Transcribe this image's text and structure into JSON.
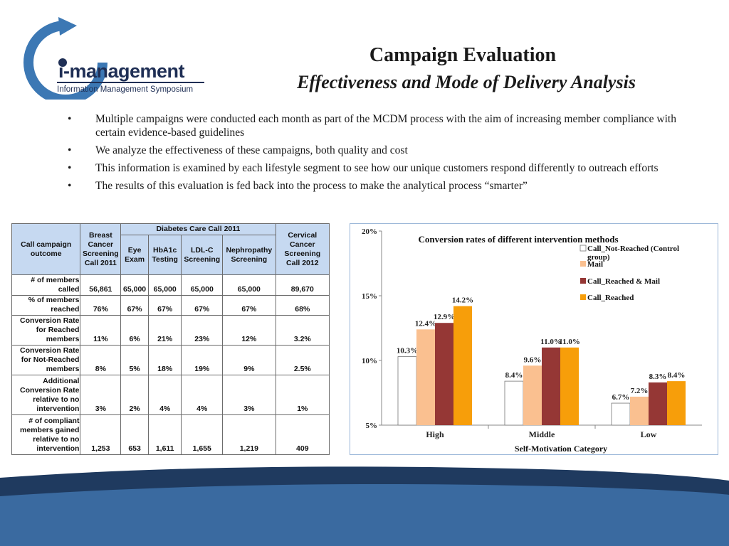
{
  "logo": {
    "word": "i-management",
    "subtitle": "Information Management Symposium"
  },
  "title": {
    "line1": "Campaign Evaluation",
    "line2": "Effectiveness and Mode of Delivery Analysis"
  },
  "bullets": [
    "Multiple campaigns were conducted each month as part of the MCDM process with the aim of increasing member compliance with certain evidence-based guidelines",
    "We analyze the effectiveness of these campaigns, both quality and cost",
    "This information is examined by each lifestyle segment to see how our unique customers respond differently to outreach efforts",
    "The results of this evaluation is fed back into the process to make the analytical process “smarter”"
  ],
  "table": {
    "h_outcome": "Call campaign outcome",
    "h_breast": "Breast Cancer Screening Call 2011",
    "h_diabetes": "Diabetes Care Call 2011",
    "h_eye": "Eye Exam",
    "h_hba1c": "HbA1c Testing",
    "h_ldlc": "LDL-C Screening",
    "h_nephro": "Nephropathy Screening",
    "h_cervical": "Cervical Cancer Screening Call 2012",
    "rows": [
      {
        "label": "# of members called",
        "vals": [
          "56,861",
          "65,000",
          "65,000",
          "65,000",
          "65,000",
          "89,670"
        ]
      },
      {
        "label": "% of members reached",
        "vals": [
          "76%",
          "67%",
          "67%",
          "67%",
          "67%",
          "68%"
        ]
      },
      {
        "label": "Conversion Rate for Reached members",
        "vals": [
          "11%",
          "6%",
          "21%",
          "23%",
          "12%",
          "3.2%"
        ]
      },
      {
        "label": "Conversion Rate for Not-Reached members",
        "vals": [
          "8%",
          "5%",
          "18%",
          "19%",
          "9%",
          "2.5%"
        ]
      },
      {
        "label": "Additional Conversion Rate relative to no intervention",
        "vals": [
          "3%",
          "2%",
          "4%",
          "4%",
          "3%",
          "1%"
        ]
      },
      {
        "label": "# of compliant members gained relative to no intervention",
        "vals": [
          "1,253",
          "653",
          "1,611",
          "1,655",
          "1,219",
          "409"
        ]
      }
    ]
  },
  "chart_data": {
    "type": "bar",
    "title": "Conversion rates of different intervention methods",
    "xlabel": "Self-Motivation Category",
    "ylabel": "",
    "categories": [
      "High",
      "Middle",
      "Low"
    ],
    "ylim": [
      5,
      20
    ],
    "yticks": [
      "5%",
      "10%",
      "15%",
      "20%"
    ],
    "grid": false,
    "legend_position": "top-right",
    "series": [
      {
        "name": "Call_Not-Reached (Control group)",
        "color": "#ffffff",
        "values": [
          10.3,
          8.4,
          6.7
        ],
        "labels": [
          "10.3%",
          "8.4%",
          "6.7%"
        ]
      },
      {
        "name": "Mail",
        "color": "#fac090",
        "values": [
          12.4,
          9.6,
          7.2
        ],
        "labels": [
          "12.4%",
          "9.6%",
          "7.2%"
        ]
      },
      {
        "name": "Call_Reached & Mail",
        "color": "#953735",
        "values": [
          12.9,
          11.0,
          8.3
        ],
        "labels": [
          "12.9%",
          "11.0%",
          "8.3%"
        ]
      },
      {
        "name": "Call_Reached",
        "color": "#f79e0a",
        "values": [
          14.2,
          11.0,
          8.4
        ],
        "labels": [
          "14.2%",
          "11.0%",
          "8.4%"
        ]
      }
    ]
  },
  "colors": {
    "table_header": "#c6d9f1",
    "wave_dark": "#1f3a5f",
    "wave_mid": "#3a6aa0",
    "logo_blue": "#3c78b4"
  }
}
